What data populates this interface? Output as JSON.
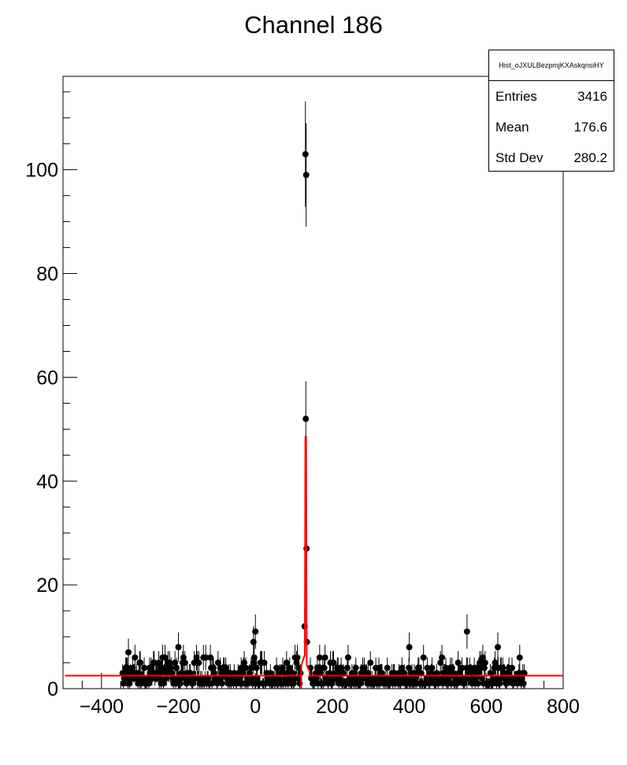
{
  "chart_data": {
    "type": "scatter",
    "title": "Channel 186",
    "xlabel": "",
    "ylabel": "",
    "xlim": [
      -500,
      800
    ],
    "ylim": [
      0,
      118
    ],
    "x_ticks": [
      -400,
      -200,
      0,
      200,
      400,
      600,
      800
    ],
    "y_ticks": [
      0,
      20,
      40,
      60,
      80,
      100
    ],
    "x_tick_labels": [
      "−400",
      "−200",
      "0",
      "200",
      "400",
      "600",
      "800"
    ],
    "y_tick_labels": [
      "0",
      "20",
      "40",
      "60",
      "80",
      "100"
    ],
    "histogram": {
      "x_range": [
        -345,
        700
      ],
      "baseline_level": 2.5,
      "notable_points": [
        {
          "x": 130,
          "y": 103
        },
        {
          "x": 132,
          "y": 99
        },
        {
          "x": 131,
          "y": 52
        },
        {
          "x": 133,
          "y": 27
        },
        {
          "x": 128,
          "y": 12
        },
        {
          "x": 134,
          "y": 9
        },
        {
          "x": 0,
          "y": 11
        },
        {
          "x": -5,
          "y": 9
        },
        {
          "x": 550,
          "y": 11
        },
        {
          "x": -200,
          "y": 8
        },
        {
          "x": -330,
          "y": 7
        },
        {
          "x": 400,
          "y": 8
        },
        {
          "x": 630,
          "y": 8
        }
      ]
    },
    "fit": {
      "color": "#ff0000",
      "baseline": 2.5,
      "peak_center": 131,
      "peak_height": 48.5,
      "step_low": 119,
      "step_high": 141
    },
    "grid": false,
    "legend": "none"
  },
  "stats": {
    "name": "Hist_oJXULBezpmjKXAskqnsiHY",
    "entries_label": "Entries",
    "entries_value": "3416",
    "mean_label": "Mean",
    "mean_value": "176.6",
    "std_label": "Std Dev",
    "std_value": "280.2"
  }
}
